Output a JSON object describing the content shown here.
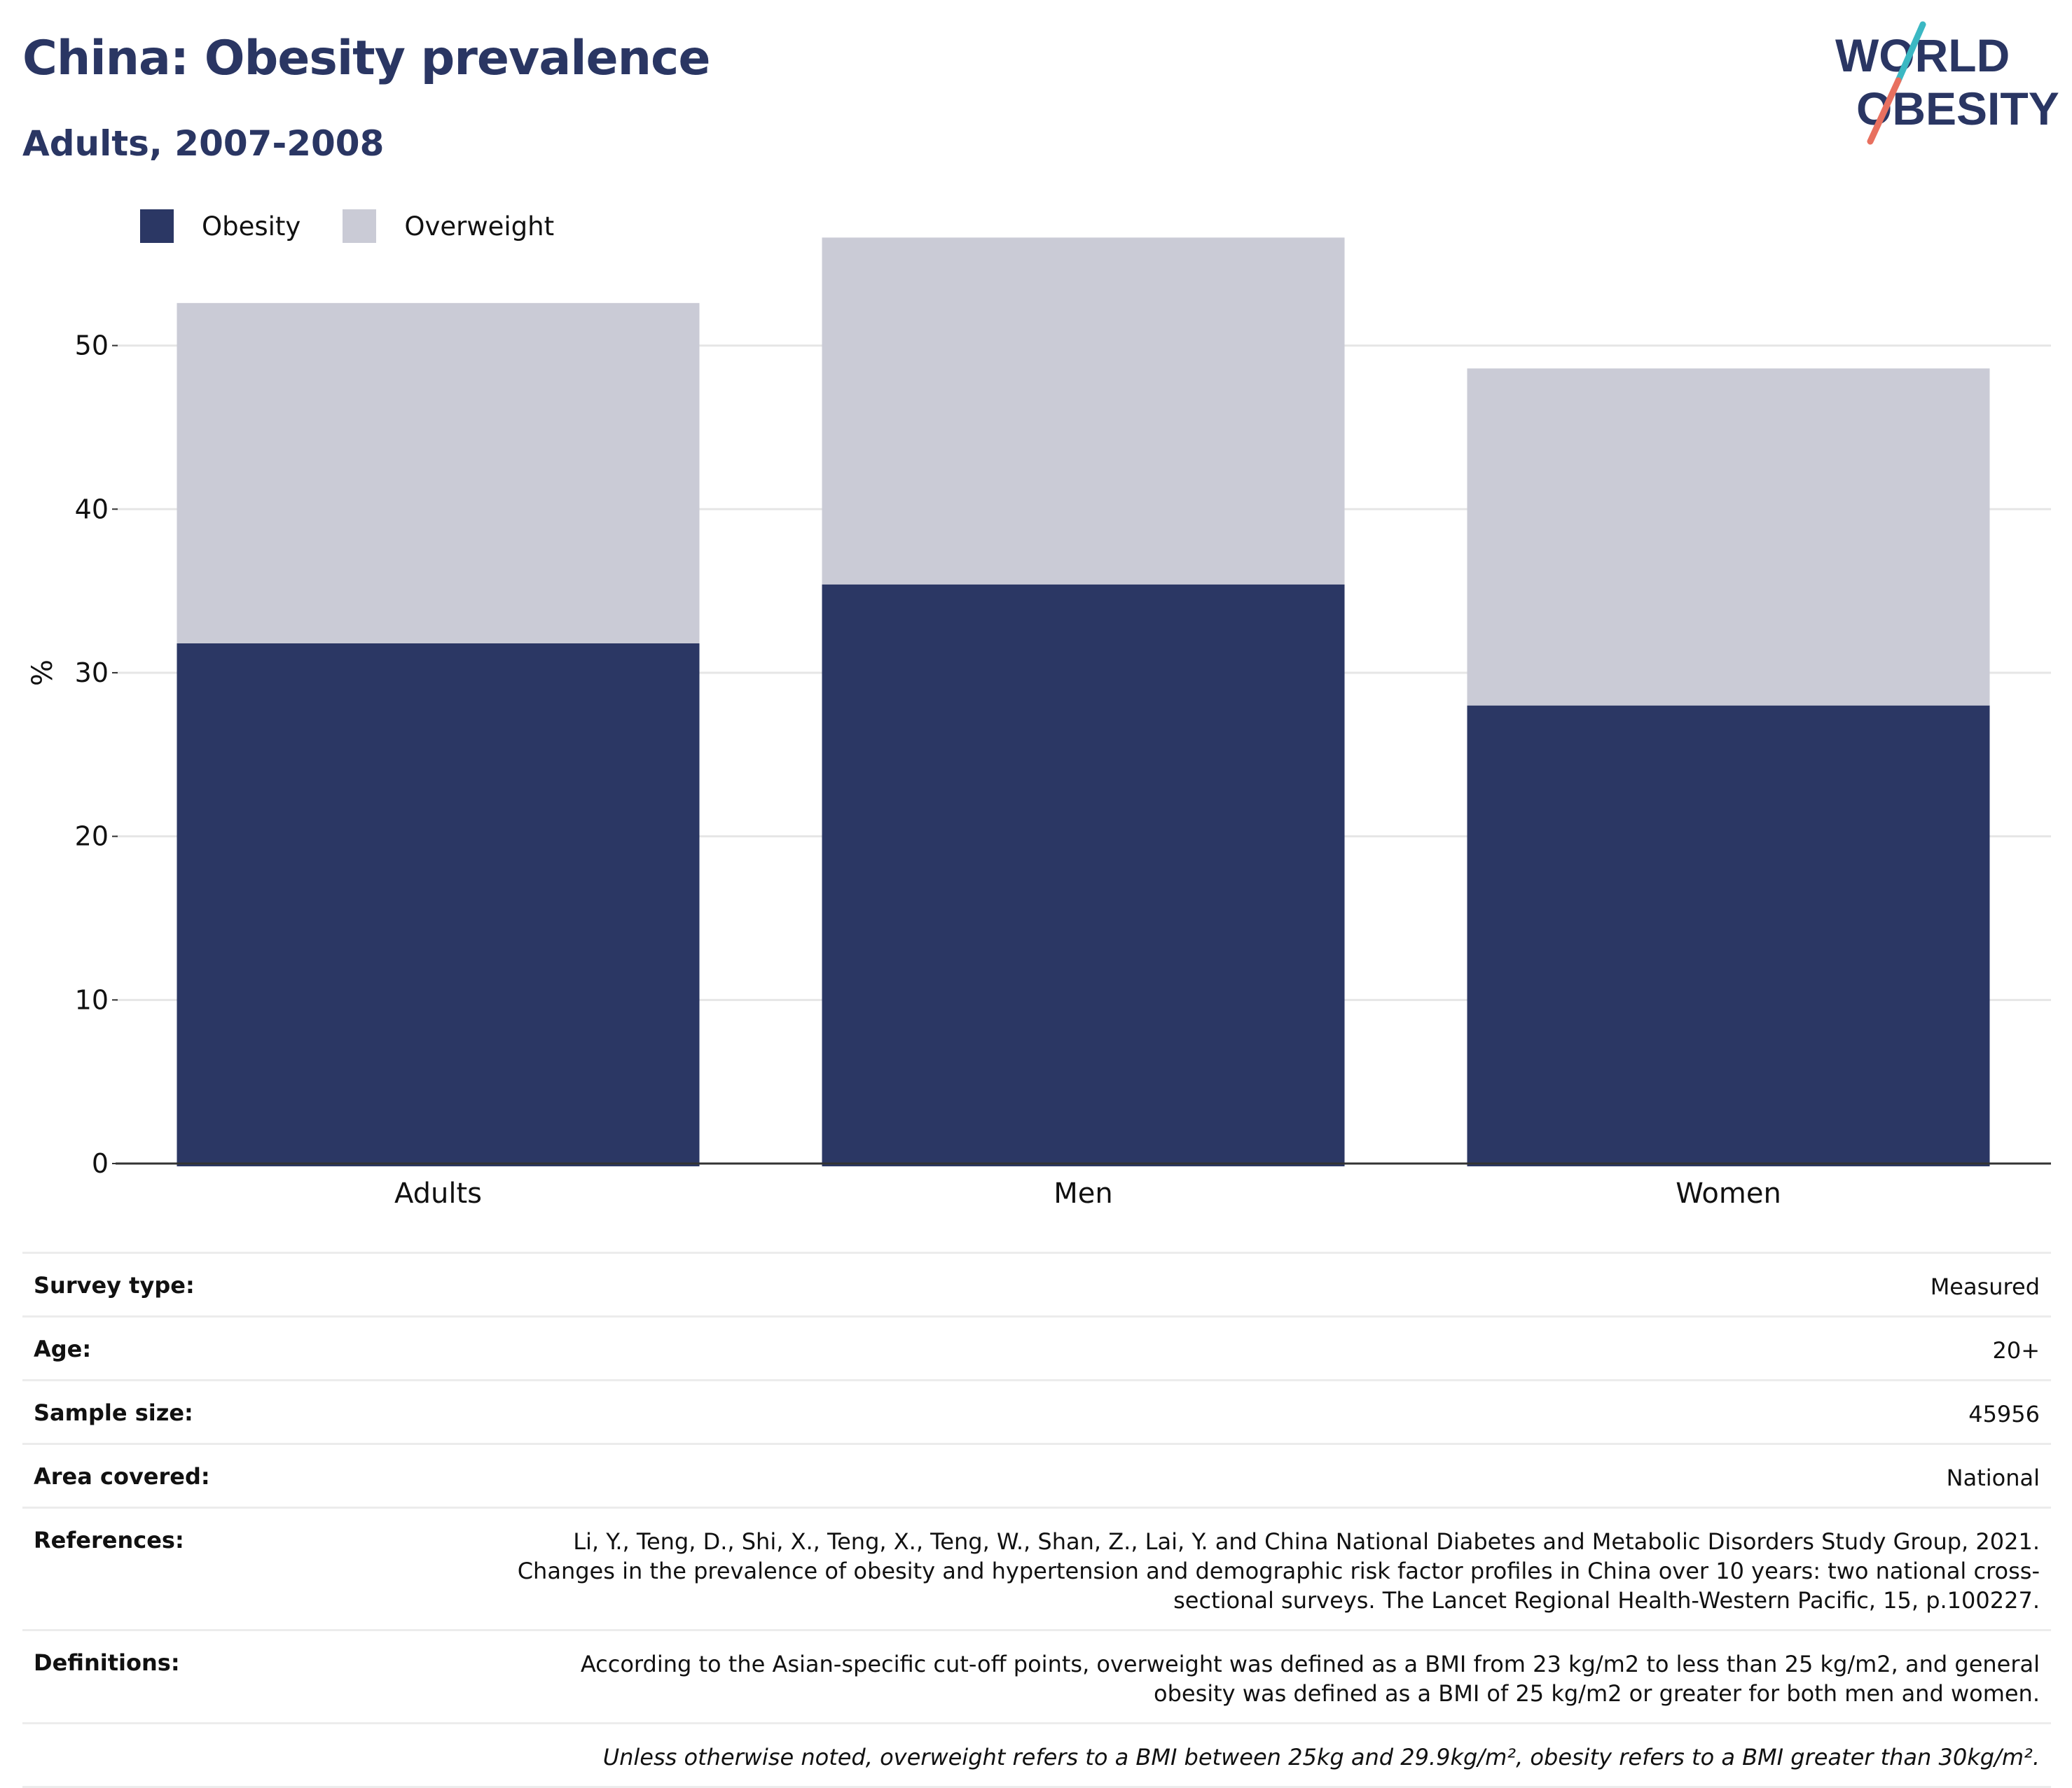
{
  "header": {
    "title": "China: Obesity prevalence",
    "subtitle": "Adults, 2007-2008"
  },
  "logo": {
    "line1": "WORLD",
    "line2": "OBESITY",
    "colors": {
      "text": "#2a3663",
      "slash_teal": "#3bb8c3",
      "slash_coral": "#e8705f"
    }
  },
  "legend": [
    {
      "label": "Obesity",
      "color": "#2b3764"
    },
    {
      "label": "Overweight",
      "color": "#cacbd6"
    }
  ],
  "chart_data": {
    "type": "bar",
    "stacked": true,
    "categories": [
      "Adults",
      "Men",
      "Women"
    ],
    "series": [
      {
        "name": "Obesity",
        "values": [
          31.8,
          35.4,
          28.0
        ],
        "color": "#2b3764"
      },
      {
        "name": "Overweight",
        "values": [
          20.8,
          21.2,
          20.6
        ],
        "color": "#cacbd6"
      }
    ],
    "ylabel": "%",
    "ylim": [
      0,
      57
    ],
    "yticks": [
      0,
      10,
      20,
      30,
      40,
      50
    ],
    "grid": true,
    "legend_position": "top-left"
  },
  "details": [
    {
      "label": "Survey type:",
      "value": "Measured"
    },
    {
      "label": "Age:",
      "value": "20+"
    },
    {
      "label": "Sample size:",
      "value": "45956"
    },
    {
      "label": "Area covered:",
      "value": "National"
    },
    {
      "label": "References:",
      "value": "Li, Y., Teng, D., Shi, X., Teng, X., Teng, W., Shan, Z., Lai, Y. and China National Diabetes and Metabolic Disorders Study Group, 2021. Changes in the prevalence of obesity and hypertension and demographic risk factor profiles in China over 10 years: two national cross-sectional surveys. The Lancet Regional Health-Western Pacific, 15, p.100227."
    },
    {
      "label": "Definitions:",
      "value": "According to the Asian-specific cut-off points, overweight was defined as a BMI from 23 kg/m2 to less than 25 kg/m2, and general obesity was defined as a BMI of 25 kg/m2 or greater for both men and women."
    }
  ],
  "footnote": "Unless otherwise noted, overweight refers to a BMI between 25kg and 29.9kg/m², obesity refers to a BMI greater than 30kg/m²."
}
